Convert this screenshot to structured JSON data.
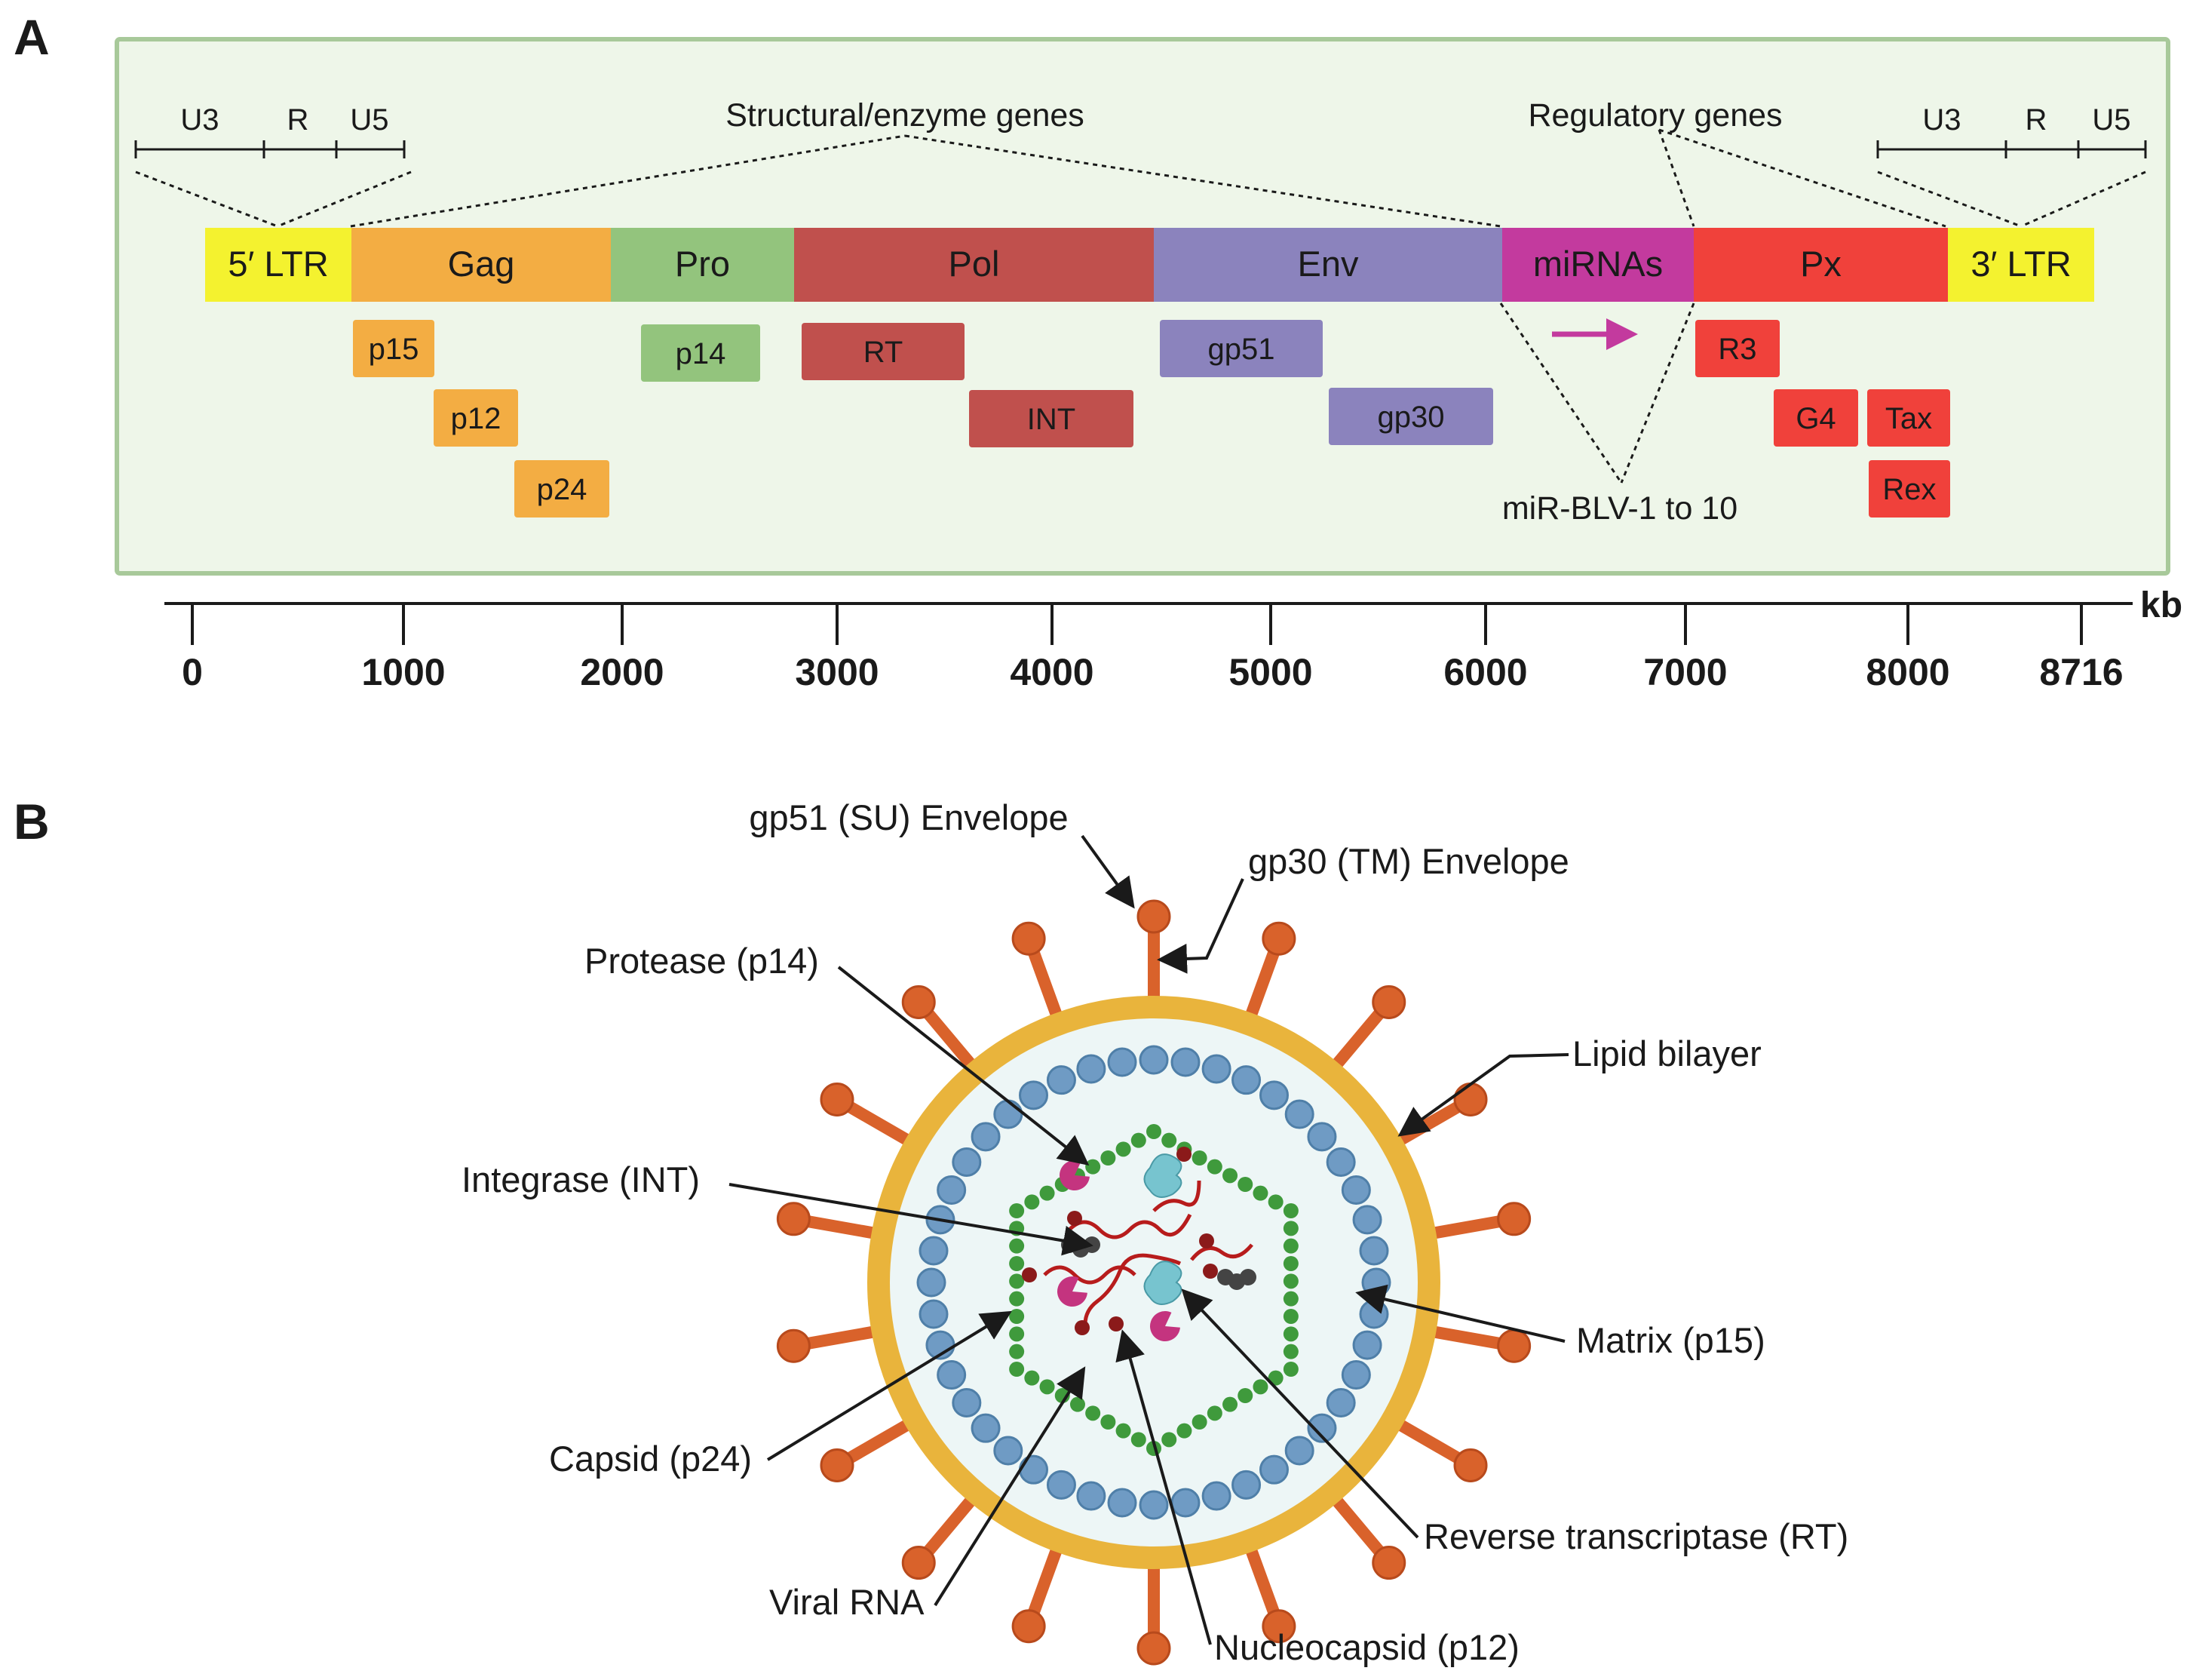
{
  "panel_a": {
    "label": "A",
    "ltr_left": {
      "u3": "U3",
      "r": "R",
      "u5": "U5"
    },
    "ltr_right": {
      "u3": "U3",
      "r": "R",
      "u5": "U5"
    },
    "structural_label": "Structural/enzyme genes",
    "regulatory_label": "Regulatory genes",
    "genes": [
      {
        "name": "5′ LTR",
        "color": "#f4f22f"
      },
      {
        "name": "Gag",
        "color": "#f3ad43"
      },
      {
        "name": "Pro",
        "color": "#93c47d"
      },
      {
        "name": "Pol",
        "color": "#c0504d"
      },
      {
        "name": "Env",
        "color": "#8b83bd"
      },
      {
        "name": "miRNAs",
        "color": "#c33a9e"
      },
      {
        "name": "Px",
        "color": "#f0413b"
      },
      {
        "name": "3′ LTR",
        "color": "#f4f22f"
      }
    ],
    "proteins": [
      {
        "name": "p15",
        "color": "#f3ad43"
      },
      {
        "name": "p12",
        "color": "#f3ad43"
      },
      {
        "name": "p24",
        "color": "#f3ad43"
      },
      {
        "name": "p14",
        "color": "#93c47d"
      },
      {
        "name": "RT",
        "color": "#c0504d"
      },
      {
        "name": "INT",
        "color": "#c0504d"
      },
      {
        "name": "gp51",
        "color": "#8b83bd"
      },
      {
        "name": "gp30",
        "color": "#8b83bd"
      },
      {
        "name": "R3",
        "color": "#f0413b"
      },
      {
        "name": "G4",
        "color": "#f0413b"
      },
      {
        "name": "Tax",
        "color": "#f0413b"
      },
      {
        "name": "Rex",
        "color": "#f0413b"
      }
    ],
    "mirna_label": "miR-BLV-1 to 10",
    "axis": {
      "unit": "kb",
      "ticks": [
        "0",
        "1000",
        "2000",
        "3000",
        "4000",
        "5000",
        "6000",
        "7000",
        "8000",
        "8716"
      ]
    },
    "colors": {
      "panel_bg": "#eef6e9",
      "panel_border": "#a8c99a",
      "arrow": "#c33a9e"
    }
  },
  "panel_b": {
    "label": "B",
    "labels": {
      "gp51": "gp51 (SU) Envelope",
      "gp30": "gp30 (TM) Envelope",
      "protease": "Protease (p14)",
      "lipid": "Lipid bilayer",
      "integrase": "Integrase (INT)",
      "matrix": "Matrix (p15)",
      "capsid": "Capsid (p24)",
      "rt": "Reverse transcriptase (RT)",
      "rna": "Viral RNA",
      "nucleocapsid": "Nucleocapsid (p12)"
    },
    "colors": {
      "envelope_ring": "#e9b43c",
      "spike": "#d9622b",
      "matrix_dot": "#6f9bc4",
      "capsid_dot": "#3f9a3c",
      "inner_bg": "#edf6f6",
      "protease": "#c4347f",
      "rt": "#77c4cf",
      "integrase": "#444444",
      "rna": "#b71c1c"
    }
  }
}
